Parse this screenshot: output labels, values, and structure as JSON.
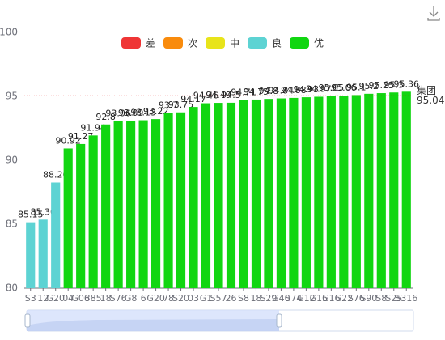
{
  "chart_data": {
    "type": "bar",
    "legend": [
      {
        "name": "差",
        "color": "#ef3535"
      },
      {
        "name": "次",
        "color": "#f98b0c"
      },
      {
        "name": "中",
        "color": "#e8e41a"
      },
      {
        "name": "良",
        "color": "#5dd3d3"
      },
      {
        "name": "优",
        "color": "#11d611"
      }
    ],
    "categories": [
      "S3",
      "12",
      "G20",
      "04",
      "G06",
      "385",
      "18",
      "S76",
      "G8",
      "6",
      "G20",
      "78",
      "S20",
      "03",
      "G1",
      "S57",
      "26",
      "S8",
      "18",
      "S29",
      "G40",
      "S74",
      "G12",
      "G15",
      "G16",
      "G22",
      "S76",
      "S90",
      "S8",
      "S25",
      "S316"
    ],
    "values": [
      85.15,
      85.36,
      88.26,
      90.92,
      91.27,
      91.94,
      92.8,
      93.06,
      93.09,
      93.13,
      93.22,
      93.7,
      93.75,
      94.17,
      94.46,
      94.49,
      94.5,
      94.71,
      94.75,
      94.8,
      94.84,
      94.88,
      94.93,
      94.97,
      95.05,
      95.06,
      95.1,
      95.2,
      95.25,
      95.3,
      95.36
    ],
    "bar_colors": [
      "#5dd3d3",
      "#5dd3d3",
      "#5dd3d3",
      "#11d611",
      "#11d611",
      "#11d611",
      "#11d611",
      "#11d611",
      "#11d611",
      "#11d611",
      "#11d611",
      "#11d611",
      "#11d611",
      "#11d611",
      "#11d611",
      "#11d611",
      "#11d611",
      "#11d611",
      "#11d611",
      "#11d611",
      "#11d611",
      "#11d611",
      "#11d611",
      "#11d611",
      "#11d611",
      "#11d611",
      "#11d611",
      "#11d611",
      "#11d611",
      "#11d611",
      "#11d611"
    ],
    "mark_line": {
      "label": "集团",
      "value": 95.04,
      "color": "#e00000"
    },
    "ylim": [
      80,
      100
    ],
    "yticks": [
      80,
      85,
      90,
      95,
      100
    ]
  }
}
